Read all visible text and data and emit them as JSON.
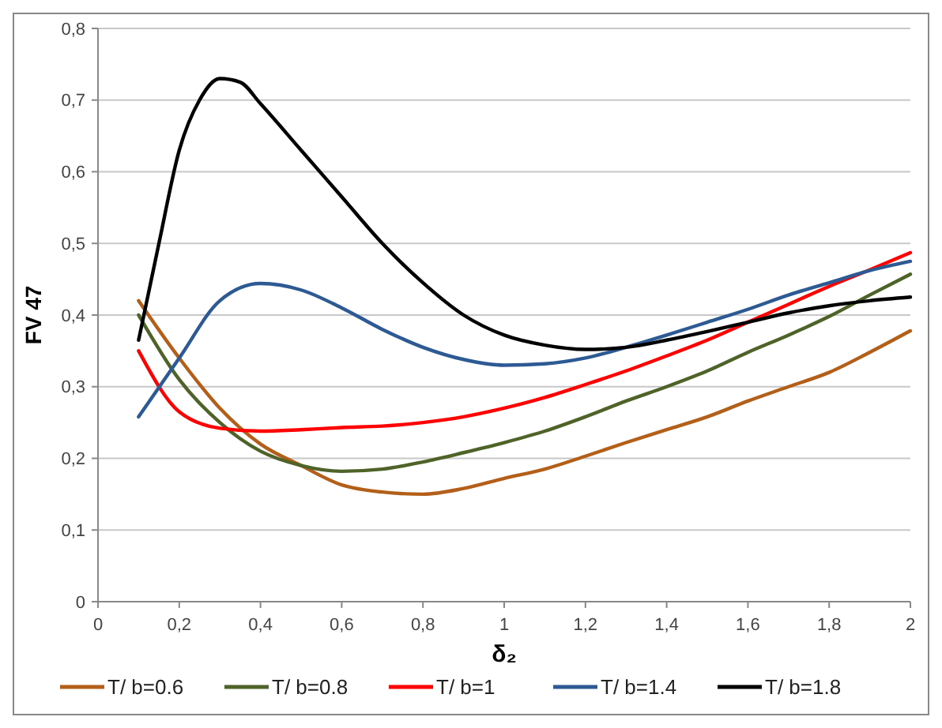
{
  "chart_data": {
    "type": "line",
    "xlabel": "δ₂",
    "ylabel": "FV 47",
    "x": [
      0.1,
      0.2,
      0.3,
      0.4,
      0.5,
      0.6,
      0.7,
      0.8,
      0.9,
      1.0,
      1.1,
      1.2,
      1.3,
      1.4,
      1.5,
      1.6,
      1.7,
      1.8,
      1.9,
      2.0
    ],
    "series": [
      {
        "name": "T/ b=0.6",
        "color": "#b35f1a",
        "values": [
          0.42,
          0.34,
          0.27,
          0.22,
          0.19,
          0.163,
          0.153,
          0.15,
          0.158,
          0.172,
          0.185,
          0.203,
          0.222,
          0.24,
          0.258,
          0.28,
          0.3,
          0.32,
          0.348,
          0.378
        ]
      },
      {
        "name": "T/ b=0.8",
        "color": "#4f6228",
        "values": [
          0.4,
          0.31,
          0.25,
          0.21,
          0.19,
          0.182,
          0.185,
          0.195,
          0.208,
          0.222,
          0.238,
          0.258,
          0.28,
          0.3,
          0.322,
          0.348,
          0.372,
          0.398,
          0.428,
          0.457
        ]
      },
      {
        "name": "T/ b=1",
        "color": "#ff0000",
        "values": [
          0.35,
          0.265,
          0.242,
          0.238,
          0.24,
          0.243,
          0.245,
          0.25,
          0.258,
          0.27,
          0.285,
          0.303,
          0.322,
          0.343,
          0.365,
          0.39,
          0.415,
          0.44,
          0.463,
          0.487
        ]
      },
      {
        "name": "T/ b=1.4",
        "color": "#2e5a94",
        "values": [
          0.258,
          0.34,
          0.42,
          0.444,
          0.435,
          0.41,
          0.38,
          0.355,
          0.338,
          0.33,
          0.332,
          0.34,
          0.355,
          0.372,
          0.39,
          0.408,
          0.428,
          0.445,
          0.462,
          0.475
        ]
      },
      {
        "name": "T/ b=1.8",
        "color": "#000000",
        "x": [
          0.1,
          0.15,
          0.2,
          0.25,
          0.3,
          0.35,
          0.4,
          0.5,
          0.6,
          0.7,
          0.8,
          0.9,
          1.0,
          1.1,
          1.2,
          1.3,
          1.4,
          1.5,
          1.6,
          1.7,
          1.8,
          1.9,
          2.0
        ],
        "values": [
          0.365,
          0.5,
          0.63,
          0.7,
          0.73,
          0.725,
          0.695,
          0.63,
          0.565,
          0.5,
          0.445,
          0.4,
          0.372,
          0.358,
          0.352,
          0.355,
          0.365,
          0.377,
          0.39,
          0.403,
          0.413,
          0.42,
          0.425
        ]
      }
    ],
    "xlim": [
      0,
      2
    ],
    "xticks": [
      0,
      {
        "value": 0.2,
        "label": "0,2"
      },
      {
        "value": 0.4,
        "label": "0,4"
      },
      {
        "value": 0.6,
        "label": "0,6"
      },
      {
        "value": 0.8,
        "label": "0,8"
      },
      1,
      {
        "value": 1.2,
        "label": "1,2"
      },
      {
        "value": 1.4,
        "label": "1,4"
      },
      {
        "value": 1.6,
        "label": "1,6"
      },
      {
        "value": 1.8,
        "label": "1,8"
      },
      2
    ],
    "ylim": [
      0,
      0.8
    ],
    "yticks": [
      0,
      {
        "value": 0.1,
        "label": "0,1"
      },
      {
        "value": 0.2,
        "label": "0,2"
      },
      {
        "value": 0.3,
        "label": "0,3"
      },
      {
        "value": 0.4,
        "label": "0,4"
      },
      {
        "value": 0.5,
        "label": "0,5"
      },
      {
        "value": 0.6,
        "label": "0,6"
      },
      {
        "value": 0.7,
        "label": "0,7"
      },
      {
        "value": 0.8,
        "label": "0,8"
      }
    ],
    "grid": "y",
    "legend": "bottom",
    "marker": "none",
    "line_style": "solid"
  }
}
